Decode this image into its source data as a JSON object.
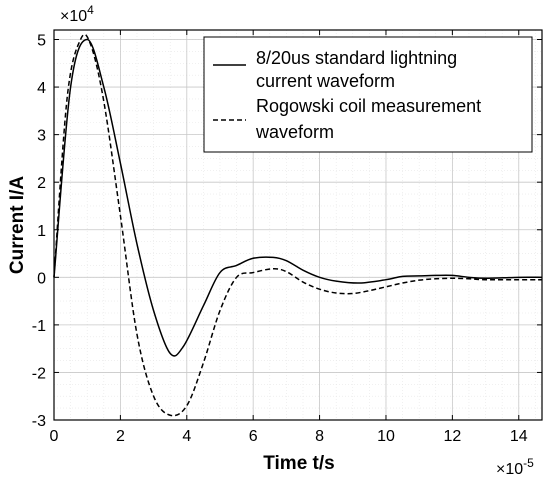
{
  "chart_data": {
    "type": "line",
    "xlabel": "Time t/s",
    "ylabel": "Current I/A",
    "x_exponent_label": "×10",
    "x_exponent_power": "-5",
    "y_exponent_label": "×10",
    "y_exponent_power": "4",
    "xlim": [
      0,
      14.7
    ],
    "ylim": [
      -3,
      5.2
    ],
    "x_ticks": [
      0,
      2,
      4,
      6,
      8,
      10,
      12,
      14
    ],
    "x_tick_labels": [
      "0",
      "2",
      "4",
      "6",
      "8",
      "10",
      "12",
      "14"
    ],
    "y_ticks": [
      -3,
      -2,
      -1,
      0,
      1,
      2,
      3,
      4,
      5
    ],
    "y_tick_labels": [
      "-3",
      "-2",
      "-1",
      "0",
      "1",
      "2",
      "3",
      "4",
      "5"
    ],
    "grid": true,
    "minor_grid": true,
    "legend_position": "top-right",
    "series": [
      {
        "name": "8/20us standard lightning current waveform",
        "style": "solid",
        "color": "#000000",
        "x": [
          0,
          0.5,
          1.0,
          1.5,
          2.0,
          2.5,
          3.0,
          3.5,
          3.9,
          4.5,
          5.0,
          5.5,
          6.0,
          6.6,
          7.0,
          7.5,
          8.0,
          8.5,
          9.2,
          10.0,
          10.5,
          11.0,
          11.5,
          12.0,
          12.5,
          13.0,
          14.0,
          14.7
        ],
        "y": [
          0,
          4.0,
          5.0,
          4.0,
          2.4,
          0.7,
          -0.7,
          -1.6,
          -1.45,
          -0.6,
          0.1,
          0.25,
          0.4,
          0.42,
          0.35,
          0.15,
          0.0,
          -0.08,
          -0.12,
          -0.05,
          0.02,
          0.03,
          0.04,
          0.04,
          0.0,
          -0.02,
          0.0,
          0.0
        ]
      },
      {
        "name": "Rogowski coil measurement waveform",
        "style": "dashed",
        "color": "#000000",
        "x": [
          0,
          0.4,
          0.8,
          1.1,
          1.5,
          2.0,
          2.5,
          3.0,
          3.5,
          4.0,
          4.5,
          5.0,
          5.5,
          6.0,
          6.6,
          7.0,
          7.5,
          8.0,
          8.5,
          9.0,
          9.5,
          10.0,
          10.5,
          11.0,
          11.5,
          12.0,
          12.5,
          13.0,
          14.0,
          14.7
        ],
        "y": [
          0,
          3.8,
          5.0,
          4.9,
          3.7,
          1.3,
          -1.2,
          -2.5,
          -2.9,
          -2.7,
          -1.8,
          -0.7,
          0.0,
          0.1,
          0.18,
          0.12,
          -0.1,
          -0.25,
          -0.33,
          -0.34,
          -0.28,
          -0.2,
          -0.12,
          -0.06,
          -0.03,
          -0.02,
          -0.03,
          -0.05,
          -0.05,
          -0.05
        ]
      }
    ]
  },
  "legend": {
    "items": [
      {
        "line1": "8/20us standard lightning",
        "line2": "current waveform"
      },
      {
        "line1": "Rogowski coil measurement",
        "line2": "waveform"
      }
    ]
  }
}
